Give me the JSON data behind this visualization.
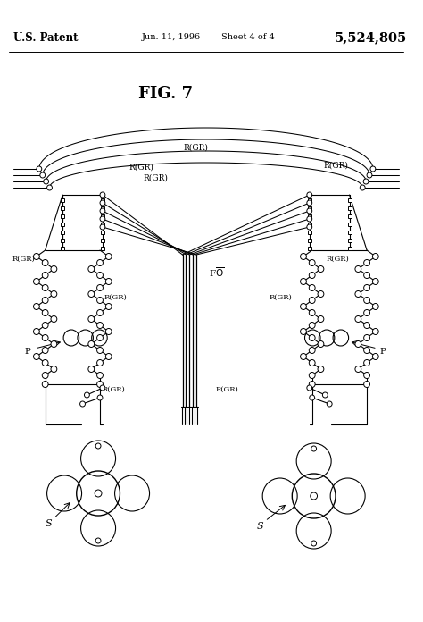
{
  "title": "FIG. 7",
  "patent_header": "U.S. Patent",
  "patent_date": "Jun. 11, 1996",
  "patent_sheet": "Sheet 4 of 4",
  "patent_number": "5,524,805",
  "bg_color": "#ffffff",
  "fig_width": 4.74,
  "fig_height": 6.96,
  "dpi": 100
}
